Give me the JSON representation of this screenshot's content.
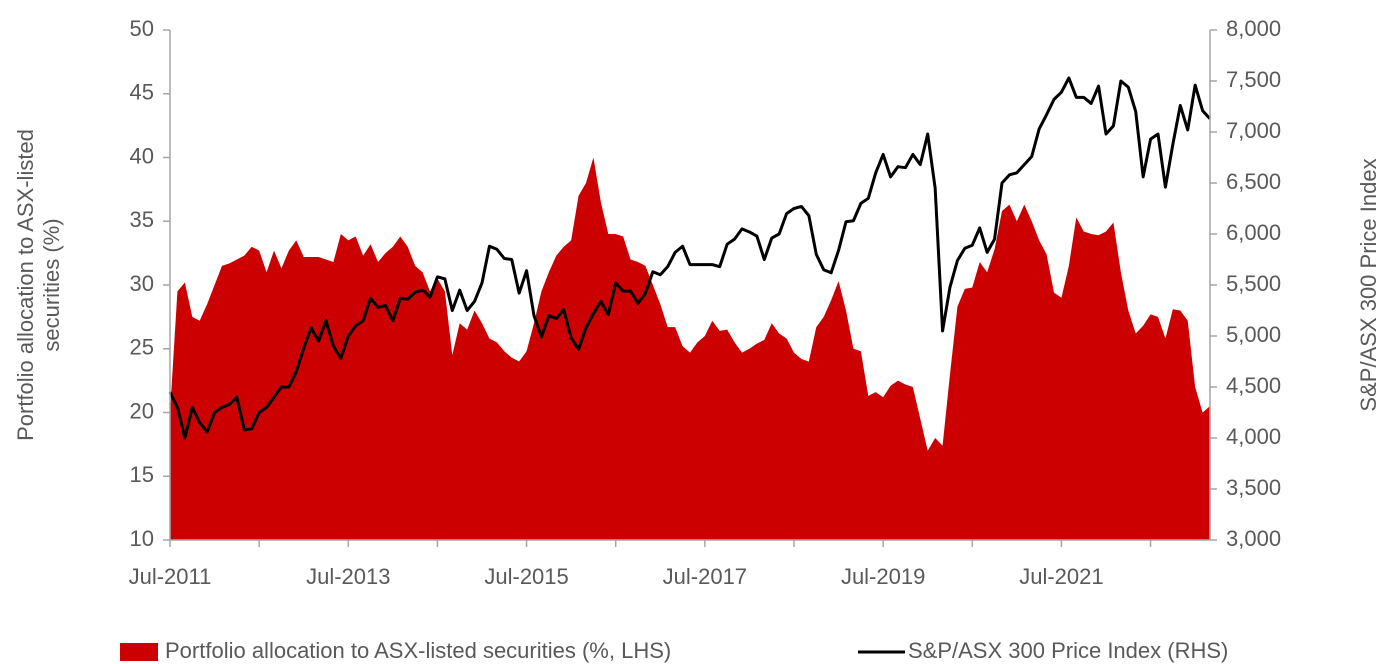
{
  "chart_data": {
    "type": "area_line",
    "categories": [
      "Jul-2011",
      null,
      null,
      null,
      null,
      null,
      null,
      null,
      null,
      null,
      null,
      null,
      null,
      null,
      null,
      null,
      null,
      null,
      null,
      null,
      null,
      null,
      null,
      null,
      "Jul-2013",
      null,
      null,
      null,
      null,
      null,
      null,
      null,
      null,
      null,
      null,
      null,
      null,
      null,
      null,
      null,
      null,
      null,
      null,
      null,
      null,
      null,
      null,
      null,
      "Jul-2015",
      null,
      null,
      null,
      null,
      null,
      null,
      null,
      null,
      null,
      null,
      null,
      null,
      null,
      null,
      null,
      null,
      null,
      null,
      null,
      null,
      null,
      null,
      null,
      "Jul-2017",
      null,
      null,
      null,
      null,
      null,
      null,
      null,
      null,
      null,
      null,
      null,
      null,
      null,
      null,
      null,
      null,
      null,
      null,
      null,
      null,
      null,
      null,
      null,
      "Jul-2019",
      null,
      null,
      null,
      null,
      null,
      null,
      null,
      null,
      null,
      null,
      null,
      null,
      null,
      null,
      null,
      null,
      null,
      null,
      null,
      null,
      null,
      null,
      null,
      "Jul-2021",
      null,
      null,
      null,
      null,
      null,
      null,
      null,
      null,
      null,
      null,
      null,
      null,
      null,
      null,
      null,
      null,
      null,
      null,
      null,
      null
    ],
    "series": [
      {
        "name": "Portfolio allocation to ASX-listed securities (%, LHS)",
        "color": "#cc0000",
        "type": "area",
        "values": [
          20,
          29.5,
          30.2,
          27.5,
          27.2,
          28.5,
          30,
          31.5,
          31.7,
          32,
          32.3,
          33,
          32.7,
          31,
          32.7,
          31.3,
          32.7,
          33.5,
          32.2,
          32.2,
          32.2,
          32,
          31.8,
          34,
          33.5,
          33.8,
          32.3,
          33.2,
          31.8,
          32.5,
          33,
          33.8,
          33,
          31.5,
          31,
          29.5,
          30.5,
          29.5,
          24.5,
          27,
          26.5,
          28,
          27,
          25.8,
          25.5,
          24.8,
          24.3,
          24,
          24.8,
          27,
          29.5,
          31,
          32.3,
          33,
          33.5,
          37,
          38,
          40,
          36.5,
          34,
          34,
          33.8,
          32,
          31.8,
          31.5,
          30,
          28.5,
          26.7,
          26.7,
          25.2,
          24.7,
          25.5,
          26,
          27.2,
          26.4,
          26.5,
          25.5,
          24.7,
          25,
          25.4,
          25.7,
          27,
          26.2,
          25.8,
          24.7,
          24.2,
          24,
          26.7,
          27.5,
          28.8,
          30.3,
          28,
          25,
          24.8,
          21.3,
          21.6,
          21.2,
          22.1,
          22.5,
          22.2,
          22,
          19.5,
          17,
          18,
          17.4,
          23,
          28.3,
          29.7,
          29.8,
          31.8,
          31,
          32.8,
          35.8,
          36.3,
          35,
          36.3,
          35,
          33.5,
          32.4,
          29.4,
          29,
          31.5,
          35.3,
          34.2,
          34,
          33.9,
          34.2,
          34.9,
          31,
          28,
          26.2,
          26.8,
          27.7,
          27.5,
          25.8,
          28.1,
          28,
          27.2,
          22,
          20,
          20.5
        ]
      },
      {
        "name": "S&P/ASX 300 Price Index (RHS)",
        "color": "#000000",
        "type": "line",
        "axis": "y2",
        "values": [
          4450,
          4300,
          4000,
          4300,
          4150,
          4060,
          4250,
          4300,
          4330,
          4400,
          4080,
          4090,
          4250,
          4300,
          4400,
          4500,
          4500,
          4650,
          4880,
          5080,
          4950,
          5150,
          4900,
          4780,
          5000,
          5100,
          5150,
          5370,
          5280,
          5300,
          5150,
          5370,
          5360,
          5430,
          5450,
          5380,
          5580,
          5560,
          5250,
          5450,
          5250,
          5340,
          5520,
          5880,
          5850,
          5760,
          5750,
          5420,
          5640,
          5200,
          4990,
          5200,
          5170,
          5260,
          4980,
          4870,
          5080,
          5220,
          5340,
          5210,
          5520,
          5440,
          5440,
          5320,
          5420,
          5630,
          5600,
          5680,
          5820,
          5880,
          5700,
          5700,
          5700,
          5700,
          5680,
          5900,
          5950,
          6050,
          6020,
          5980,
          5750,
          5960,
          6000,
          6200,
          6250,
          6270,
          6180,
          5800,
          5650,
          5620,
          5840,
          6120,
          6130,
          6300,
          6350,
          6600,
          6780,
          6560,
          6660,
          6650,
          6780,
          6680,
          6980,
          6450,
          5050,
          5480,
          5740,
          5860,
          5890,
          6060,
          5820,
          5950,
          6500,
          6580,
          6600,
          6680,
          6760,
          7030,
          7170,
          7320,
          7390,
          7530,
          7340,
          7340,
          7280,
          7450,
          6980,
          7060,
          7500,
          7440,
          7200,
          6560,
          6930,
          6980,
          6460,
          6880,
          7260,
          7020,
          7460,
          7210,
          7130
        ]
      }
    ],
    "ylabel": "Portfolio allocation to ASX-listed securities (%)",
    "y2label": "S&P/ASX 300 Price Index",
    "ylim": [
      10,
      50
    ],
    "yticks": [
      10,
      15,
      20,
      25,
      30,
      35,
      40,
      45,
      50
    ],
    "y2lim": [
      3000,
      8000
    ],
    "y2ticks": [
      {
        "value": 3000,
        "label": "3,000"
      },
      {
        "value": 3500,
        "label": "3,500"
      },
      {
        "value": 4000,
        "label": "4,000"
      },
      {
        "value": 4500,
        "label": "4,500"
      },
      {
        "value": 5000,
        "label": "5,000"
      },
      {
        "value": 5500,
        "label": "5,500"
      },
      {
        "value": 6000,
        "label": "6,000"
      },
      {
        "value": 6500,
        "label": "6,500"
      },
      {
        "value": 7000,
        "label": "7,000"
      },
      {
        "value": 7500,
        "label": "7,500"
      },
      {
        "value": 8000,
        "label": "8,000"
      }
    ],
    "legend": "bottom"
  }
}
